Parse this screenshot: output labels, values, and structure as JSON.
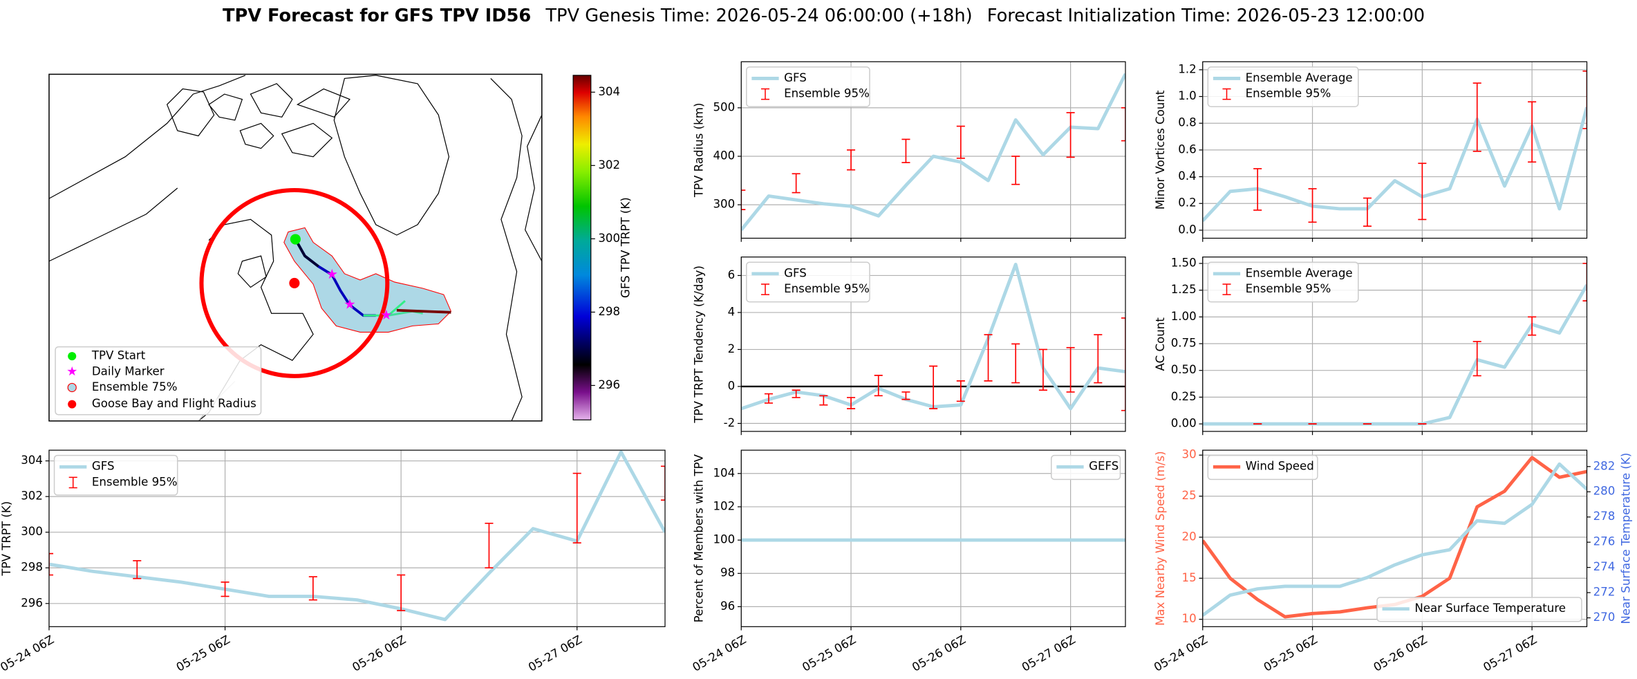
{
  "titles": [
    "TPV Forecast for GFS TPV ID56",
    "TPV Genesis Time: 2026-05-24 06:00:00 (+18h)",
    "Forecast Initialization Time: 2026-05-23 12:00:00"
  ],
  "chart_data": [
    {
      "type": "map",
      "legend": [
        "TPV Start",
        "Daily Marker",
        "Ensemble 75%",
        "Goose Bay and Flight Radius"
      ],
      "colorbar": {
        "label": "GFS TPV TRPT (K)",
        "lim": [
          295.06,
          304.46
        ],
        "ticks": [
          296,
          298,
          300,
          302,
          304
        ]
      }
    },
    {
      "type": "line",
      "ylabel": "TPV Radius (km)",
      "x": [
        "05-24 06Z",
        "05-24 12Z",
        "05-24 18Z",
        "05-25 00Z",
        "05-25 06Z",
        "05-25 12Z",
        "05-25 18Z",
        "05-26 00Z",
        "05-26 06Z",
        "05-26 12Z",
        "05-26 18Z",
        "05-27 00Z",
        "05-27 06Z",
        "05-27 12Z",
        "05-27 18Z"
      ],
      "xlim": [
        "05-24 06Z",
        "05-27 18Z"
      ],
      "xticks": [
        "05-24 06Z",
        "05-25 06Z",
        "05-26 06Z",
        "05-27 06Z"
      ],
      "ylim": [
        231,
        595
      ],
      "yticks": [
        300,
        400,
        500
      ],
      "grid": true,
      "legend": "upper left",
      "series": [
        {
          "name": "GFS",
          "color": "#add8e6",
          "values": [
            248,
            318,
            310,
            302,
            297,
            277,
            340,
            400,
            388,
            350,
            475,
            403,
            460,
            457,
            570
          ]
        },
        {
          "name": "Ensemble 95%",
          "kind": "errorbar",
          "color": "#ff0000",
          "low": [
            290,
            null,
            325,
            null,
            372,
            null,
            387,
            null,
            396,
            null,
            342,
            null,
            398,
            null,
            432
          ],
          "high": [
            330,
            null,
            364,
            null,
            413,
            null,
            435,
            null,
            462,
            null,
            400,
            null,
            490,
            null,
            500
          ]
        }
      ]
    },
    {
      "type": "line",
      "ylabel": "TPV TRPT Tendency (K/day)",
      "x": [
        "05-24 06Z",
        "05-24 12Z",
        "05-24 18Z",
        "05-25 00Z",
        "05-25 06Z",
        "05-25 12Z",
        "05-25 18Z",
        "05-26 00Z",
        "05-26 06Z",
        "05-26 12Z",
        "05-26 18Z",
        "05-27 00Z",
        "05-27 06Z",
        "05-27 12Z",
        "05-27 18Z"
      ],
      "xlim": [
        "05-24 06Z",
        "05-27 18Z"
      ],
      "xticks": [
        "05-24 06Z",
        "05-25 06Z",
        "05-26 06Z",
        "05-27 06Z"
      ],
      "ylim": [
        -2.43,
        7.0
      ],
      "yticks": [
        -2,
        0,
        2,
        4,
        6
      ],
      "grid": true,
      "legend": "upper left",
      "hline": 0,
      "series": [
        {
          "name": "GFS",
          "color": "#add8e6",
          "values": [
            -1.2,
            -0.7,
            -0.3,
            -0.5,
            -1.0,
            -0.1,
            -0.7,
            -1.1,
            -1.0,
            2.6,
            6.6,
            1.0,
            -1.2,
            1.0,
            0.8
          ]
        },
        {
          "name": "Ensemble 95%",
          "kind": "errorbar",
          "color": "#ff0000",
          "low": [
            null,
            -0.9,
            -0.6,
            -1.0,
            -1.2,
            -0.5,
            -0.7,
            -1.2,
            -0.8,
            0.3,
            0.2,
            -0.2,
            -0.3,
            0.2,
            -1.3
          ],
          "high": [
            null,
            -0.4,
            -0.2,
            -0.5,
            -0.6,
            0.6,
            -0.3,
            1.1,
            0.3,
            2.8,
            2.3,
            2.0,
            2.1,
            2.8,
            3.7
          ]
        }
      ]
    },
    {
      "type": "line",
      "ylabel": "Percent of Members with TPV",
      "x": [
        "05-24 06Z",
        "05-24 12Z",
        "05-24 18Z",
        "05-25 00Z",
        "05-25 06Z",
        "05-25 12Z",
        "05-25 18Z",
        "05-26 00Z",
        "05-26 06Z",
        "05-26 12Z",
        "05-26 18Z",
        "05-27 00Z",
        "05-27 06Z",
        "05-27 12Z",
        "05-27 18Z"
      ],
      "xlim": [
        "05-24 06Z",
        "05-27 18Z"
      ],
      "xticks": [
        "05-24 06Z",
        "05-25 06Z",
        "05-26 06Z",
        "05-27 06Z"
      ],
      "ylim": [
        94.8,
        105.4
      ],
      "yticks": [
        96,
        98,
        100,
        102,
        104
      ],
      "grid": true,
      "legend": "upper right",
      "series": [
        {
          "name": "GEFS",
          "color": "#add8e6",
          "values": [
            100,
            100,
            100,
            100,
            100,
            100,
            100,
            100,
            100,
            100,
            100,
            100,
            100,
            100,
            100
          ]
        }
      ]
    },
    {
      "type": "line",
      "ylabel": "TPV TRPT (K)",
      "x": [
        "05-24 06Z",
        "05-24 12Z",
        "05-24 18Z",
        "05-25 00Z",
        "05-25 06Z",
        "05-25 12Z",
        "05-25 18Z",
        "05-26 00Z",
        "05-26 06Z",
        "05-26 12Z",
        "05-26 18Z",
        "05-27 00Z",
        "05-27 06Z",
        "05-27 12Z",
        "05-27 18Z"
      ],
      "xlim": [
        "05-24 06Z",
        "05-27 18Z"
      ],
      "xticks": [
        "05-24 06Z",
        "05-25 06Z",
        "05-26 06Z",
        "05-27 06Z"
      ],
      "ylim": [
        294.7,
        304.6
      ],
      "yticks": [
        296,
        298,
        300,
        302,
        304
      ],
      "grid": true,
      "legend": "upper left",
      "series": [
        {
          "name": "GFS",
          "color": "#add8e6",
          "values": [
            298.2,
            297.8,
            297.5,
            297.2,
            296.8,
            296.4,
            296.4,
            296.2,
            295.7,
            295.1,
            297.7,
            300.2,
            299.5,
            304.5,
            300.0
          ]
        },
        {
          "name": "Ensemble 95%",
          "kind": "errorbar",
          "color": "#ff0000",
          "low": [
            297.6,
            null,
            297.4,
            null,
            296.4,
            null,
            296.2,
            null,
            295.6,
            null,
            298.0,
            null,
            299.4,
            null,
            301.8
          ],
          "high": [
            298.8,
            null,
            298.4,
            null,
            297.2,
            null,
            297.5,
            null,
            297.6,
            null,
            300.5,
            null,
            303.3,
            null,
            303.7
          ]
        }
      ]
    },
    {
      "type": "line",
      "ylabel": "Minor Vortices Count",
      "x": [
        "05-24 06Z",
        "05-24 12Z",
        "05-24 18Z",
        "05-25 00Z",
        "05-25 06Z",
        "05-25 12Z",
        "05-25 18Z",
        "05-26 00Z",
        "05-26 06Z",
        "05-26 12Z",
        "05-26 18Z",
        "05-27 00Z",
        "05-27 06Z",
        "05-27 12Z",
        "05-27 18Z"
      ],
      "xlim": [
        "05-24 06Z",
        "05-27 18Z"
      ],
      "xticks": [
        "05-24 06Z",
        "05-25 06Z",
        "05-26 06Z",
        "05-27 06Z"
      ],
      "ylim": [
        -0.06,
        1.26
      ],
      "yticks": [
        {
          "value": 0,
          "label": "0.0"
        },
        0.2,
        0.4,
        0.6,
        0.8,
        {
          "value": 1,
          "label": "1.0"
        },
        1.2
      ],
      "grid": true,
      "legend": "upper left",
      "series": [
        {
          "name": "Ensemble Average",
          "color": "#add8e6",
          "values": [
            0.07,
            0.29,
            0.31,
            0.25,
            0.18,
            0.16,
            0.16,
            0.37,
            0.25,
            0.31,
            0.83,
            0.33,
            0.78,
            0.16,
            0.92
          ]
        },
        {
          "name": "Ensemble 95%",
          "kind": "errorbar",
          "color": "#ff0000",
          "low": [
            null,
            null,
            0.15,
            null,
            0.06,
            null,
            0.03,
            null,
            0.08,
            null,
            0.59,
            null,
            0.51,
            null,
            0.76
          ],
          "high": [
            null,
            null,
            0.46,
            null,
            0.31,
            null,
            0.24,
            null,
            0.5,
            null,
            1.1,
            null,
            0.96,
            null,
            1.19
          ]
        }
      ]
    },
    {
      "type": "line",
      "ylabel": "AC Count",
      "x": [
        "05-24 06Z",
        "05-24 12Z",
        "05-24 18Z",
        "05-25 00Z",
        "05-25 06Z",
        "05-25 12Z",
        "05-25 18Z",
        "05-26 00Z",
        "05-26 06Z",
        "05-26 12Z",
        "05-26 18Z",
        "05-27 00Z",
        "05-27 06Z",
        "05-27 12Z",
        "05-27 18Z"
      ],
      "xlim": [
        "05-24 06Z",
        "05-27 18Z"
      ],
      "xticks": [
        "05-24 06Z",
        "05-25 06Z",
        "05-26 06Z",
        "05-27 06Z"
      ],
      "ylim": [
        -0.07,
        1.56
      ],
      "yticks": [
        {
          "value": 0,
          "label": "0.00"
        },
        0.25,
        {
          "value": 0.5,
          "label": "0.50"
        },
        0.75,
        {
          "value": 1,
          "label": "1.00"
        },
        1.25,
        {
          "value": 1.5,
          "label": "1.50"
        }
      ],
      "grid": true,
      "legend": "upper left",
      "series": [
        {
          "name": "Ensemble Average",
          "color": "#add8e6",
          "values": [
            0,
            0,
            0,
            0,
            0,
            0,
            0,
            0,
            0,
            0.06,
            0.6,
            0.53,
            0.93,
            0.85,
            1.3
          ]
        },
        {
          "name": "Ensemble 95%",
          "kind": "errorbar",
          "color": "#ff0000",
          "low": [
            null,
            null,
            0,
            null,
            0,
            null,
            0,
            null,
            0,
            null,
            0.45,
            null,
            0.83,
            null,
            1.15
          ],
          "high": [
            null,
            null,
            0,
            null,
            0,
            null,
            0,
            null,
            0,
            null,
            0.77,
            null,
            1.0,
            null,
            1.5
          ]
        }
      ]
    },
    {
      "type": "line",
      "ylabel": "Max Nearby Wind Speed (m/s)",
      "ylabel_color": "#ff6347",
      "y2label": "Near Surface Temperature (K)",
      "y2label_color": "#4169e1",
      "x": [
        "05-24 06Z",
        "05-24 12Z",
        "05-24 18Z",
        "05-25 00Z",
        "05-25 06Z",
        "05-25 12Z",
        "05-25 18Z",
        "05-26 00Z",
        "05-26 06Z",
        "05-26 12Z",
        "05-26 18Z",
        "05-27 00Z",
        "05-27 06Z",
        "05-27 12Z",
        "05-27 18Z"
      ],
      "xlim": [
        "05-24 06Z",
        "05-27 18Z"
      ],
      "xticks": [
        "05-24 06Z",
        "05-25 06Z",
        "05-26 06Z",
        "05-27 06Z"
      ],
      "ylim": [
        9.1,
        30.6
      ],
      "yticks": [
        10,
        15,
        20,
        25,
        30
      ],
      "y2lim": [
        269.3,
        283.3
      ],
      "y2ticks": [
        270,
        272,
        274,
        276,
        278,
        280,
        282
      ],
      "grid": true,
      "legend": "upper left",
      "legend2": "lower right",
      "series": [
        {
          "name": "Wind Speed",
          "color": "#ff6347",
          "values": [
            19.6,
            15.0,
            12.4,
            10.3,
            10.7,
            10.9,
            11.4,
            11.8,
            12.8,
            15.0,
            23.7,
            25.6,
            29.7,
            27.3,
            28.0
          ]
        },
        {
          "name": "Near Surface Temperature",
          "color": "#add8e6",
          "axis": "y2",
          "values": [
            270.2,
            271.8,
            272.3,
            272.5,
            272.5,
            272.5,
            273.2,
            274.2,
            275.0,
            275.4,
            277.7,
            277.5,
            279.0,
            282.2,
            280.2
          ]
        }
      ]
    }
  ]
}
